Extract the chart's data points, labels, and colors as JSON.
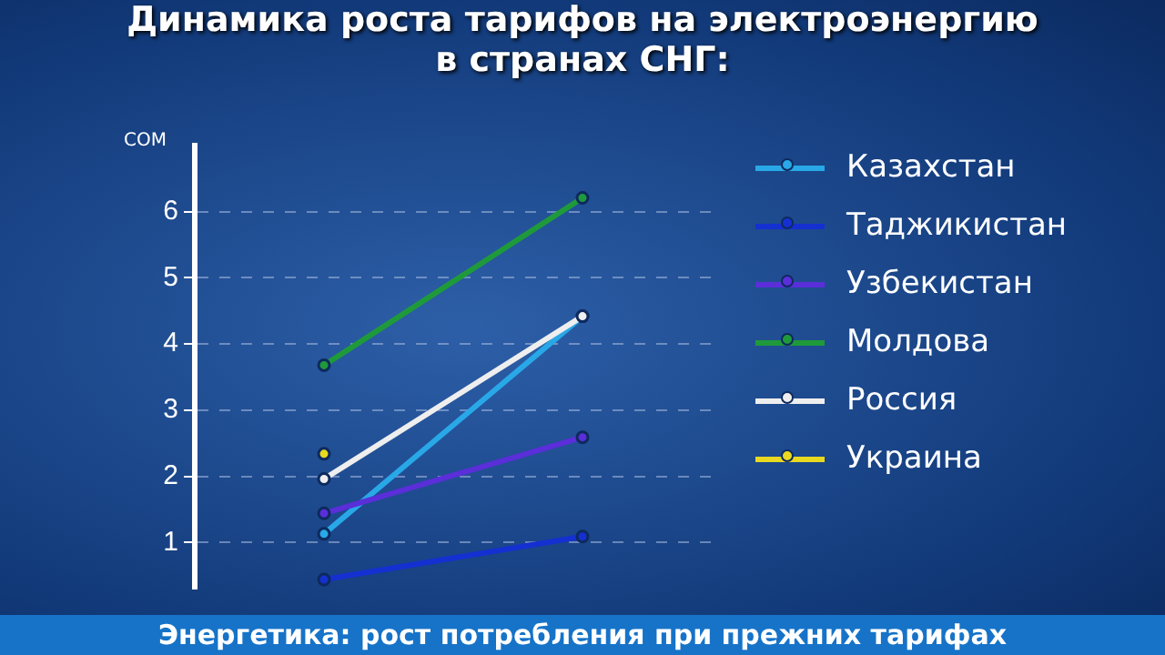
{
  "chart_data": {
    "type": "line",
    "title": "Динамика роста тарифов на электроэнергию\nв странах СНГ:",
    "ylabel": "СОМ",
    "categories": [
      null,
      null
    ],
    "series": [
      {
        "name": "Казахстан",
        "color": "#29a8e8",
        "values": [
          1.13,
          4.42
        ]
      },
      {
        "name": "Таджикистан",
        "color": "#1530d0",
        "values": [
          0.44,
          1.09
        ]
      },
      {
        "name": "Узбекистан",
        "color": "#5a2ed8",
        "values": [
          1.44,
          2.59
        ]
      },
      {
        "name": "Молдова",
        "color": "#1f9a3a",
        "values": [
          3.68,
          6.21
        ]
      },
      {
        "name": "Россия",
        "color": "#eeeeee",
        "values": [
          1.96,
          4.42
        ]
      },
      {
        "name": "Украина",
        "color": "#e8d820",
        "values": [
          2.34,
          null
        ]
      }
    ],
    "ylim": [
      0.3,
      7
    ],
    "yticks": [
      1,
      2,
      3,
      4,
      5,
      6
    ],
    "grid": "y",
    "legend": "right",
    "marker": "circle",
    "line_style": "solid",
    "annotations": [
      "Энергетика: рост потребления при прежних тарифах"
    ]
  }
}
